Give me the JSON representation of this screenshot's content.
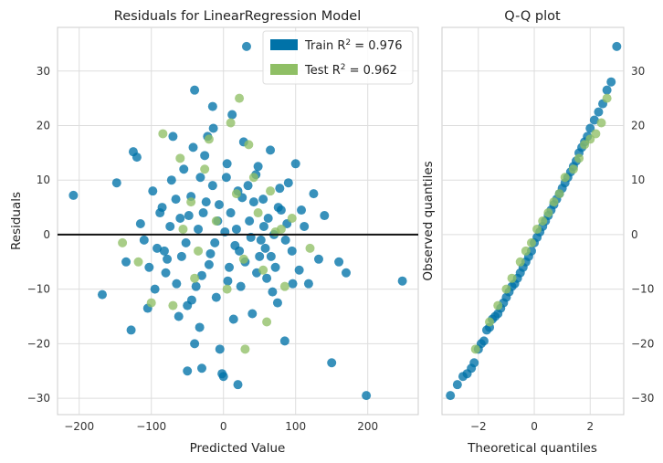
{
  "chart_data": [
    {
      "type": "scatter",
      "title": "Residuals for LinearRegression Model",
      "xlabel": "Predicted Value",
      "ylabel": "Residuals",
      "xlim": [
        -230,
        270
      ],
      "ylim": [
        -33,
        38
      ],
      "xticks": [
        -200,
        -100,
        0,
        100,
        200
      ],
      "yticks": [
        -30,
        -20,
        -10,
        0,
        10,
        20,
        30
      ],
      "zero_line": 0,
      "grid": true,
      "legend_position": "top-right",
      "legend": [
        {
          "name_prefix": "Train R",
          "superscript": "2",
          "value_text": " = 0.976",
          "color": "#0072a8"
        },
        {
          "name_prefix": "Test R",
          "superscript": "2",
          "value_text": " = 0.962",
          "color": "#8fbf65"
        }
      ],
      "series": [
        {
          "name": "Train",
          "color": "#0072a8",
          "points": [
            [
              -208,
              7.2
            ],
            [
              -168,
              -11.0
            ],
            [
              -148,
              9.5
            ],
            [
              -128,
              -17.5
            ],
            [
              -125,
              15.2
            ],
            [
              -120,
              14.2
            ],
            [
              -110,
              -1.0
            ],
            [
              -103,
              -6.0
            ],
            [
              -98,
              8.0
            ],
            [
              -92,
              -2.5
            ],
            [
              -85,
              5.0
            ],
            [
              -78,
              -4.5
            ],
            [
              -72,
              10.0
            ],
            [
              -65,
              -9.0
            ],
            [
              -60,
              3.0
            ],
            [
              -55,
              12.0
            ],
            [
              -50,
              -13.0
            ],
            [
              -45,
              7.0
            ],
            [
              -40,
              -20.0
            ],
            [
              -35,
              1.0
            ],
            [
              -30,
              -7.5
            ],
            [
              -26,
              14.5
            ],
            [
              -22,
              18.0
            ],
            [
              -18,
              -3.5
            ],
            [
              -15,
              9.0
            ],
            [
              -10,
              -11.5
            ],
            [
              -6,
              5.5
            ],
            [
              -2,
              -25.5
            ],
            [
              2,
              0.5
            ],
            [
              5,
              13.0
            ],
            [
              8,
              -6.0
            ],
            [
              12,
              22.0
            ],
            [
              16,
              -2.0
            ],
            [
              20,
              8.0
            ],
            [
              24,
              -9.5
            ],
            [
              28,
              17.0
            ],
            [
              32,
              34.5
            ],
            [
              36,
              2.5
            ],
            [
              40,
              -14.5
            ],
            [
              45,
              11.0
            ],
            [
              50,
              -4.0
            ],
            [
              55,
              6.5
            ],
            [
              60,
              -8.0
            ],
            [
              65,
              15.5
            ],
            [
              70,
              0.0
            ],
            [
              75,
              -12.5
            ],
            [
              80,
              4.5
            ],
            [
              85,
              -19.5
            ],
            [
              90,
              9.5
            ],
            [
              95,
              -3.0
            ],
            [
              100,
              13.0
            ],
            [
              105,
              -6.5
            ],
            [
              112,
              1.5
            ],
            [
              118,
              -9.0
            ],
            [
              125,
              7.5
            ],
            [
              132,
              -4.5
            ],
            [
              140,
              3.5
            ],
            [
              150,
              -23.5
            ],
            [
              160,
              -5.0
            ],
            [
              170,
              -7.0
            ],
            [
              198,
              -29.5
            ],
            [
              248,
              -8.5
            ],
            [
              -70,
              18.0
            ],
            [
              -62,
              -15.0
            ],
            [
              -52,
              -1.5
            ],
            [
              -42,
              16.0
            ],
            [
              -33,
              -17.0
            ],
            [
              -24,
              6.0
            ],
            [
              -14,
              19.5
            ],
            [
              -5,
              -21.0
            ],
            [
              4,
              10.5
            ],
            [
              14,
              -15.5
            ],
            [
              26,
              6.8
            ],
            [
              38,
              -0.5
            ],
            [
              48,
              12.5
            ],
            [
              58,
              -2.5
            ],
            [
              68,
              -10.5
            ],
            [
              78,
              8.5
            ],
            [
              88,
              2.0
            ],
            [
              -95,
              -10.0
            ],
            [
              -88,
              4.0
            ],
            [
              -80,
              -7.0
            ],
            [
              -74,
              1.5
            ],
            [
              -58,
              -4.0
            ],
            [
              -48,
              3.5
            ],
            [
              -38,
              -9.5
            ],
            [
              -28,
              4.0
            ],
            [
              -20,
              -5.5
            ],
            [
              -8,
              2.5
            ],
            [
              6,
              -8.5
            ],
            [
              18,
              1.0
            ],
            [
              30,
              -5.0
            ],
            [
              42,
              6.0
            ],
            [
              52,
              -1.0
            ],
            [
              62,
              3.0
            ],
            [
              72,
              -6.0
            ],
            [
              -115,
              2.0
            ],
            [
              -135,
              -5.0
            ],
            [
              -105,
              -13.5
            ],
            [
              -82,
              -3.0
            ],
            [
              -66,
              6.5
            ],
            [
              -44,
              -12.0
            ],
            [
              -32,
              10.5
            ],
            [
              -12,
              -1.5
            ],
            [
              10,
              4.0
            ],
            [
              22,
              -3.0
            ],
            [
              34,
              9.0
            ],
            [
              46,
              -7.0
            ],
            [
              56,
              1.5
            ],
            [
              66,
              -4.0
            ],
            [
              76,
              5.0
            ],
            [
              86,
              -1.0
            ],
            [
              96,
              -9.0
            ],
            [
              108,
              4.5
            ],
            [
              -40,
              26.5
            ],
            [
              -15,
              23.5
            ],
            [
              -50,
              -25.0
            ],
            [
              -30,
              -24.5
            ],
            [
              0,
              -26.0
            ],
            [
              20,
              -27.5
            ]
          ]
        },
        {
          "name": "Test",
          "color": "#8fbf65",
          "points": [
            [
              -140,
              -1.5
            ],
            [
              -118,
              -5.0
            ],
            [
              -84,
              18.5
            ],
            [
              -70,
              -13.0
            ],
            [
              -56,
              1.0
            ],
            [
              -40,
              -8.0
            ],
            [
              -26,
              12.0
            ],
            [
              -10,
              2.5
            ],
            [
              5,
              -10.0
            ],
            [
              18,
              7.5
            ],
            [
              22,
              25.0
            ],
            [
              28,
              -4.5
            ],
            [
              35,
              16.5
            ],
            [
              48,
              4.0
            ],
            [
              60,
              -16.0
            ],
            [
              72,
              0.5
            ],
            [
              85,
              -9.5
            ],
            [
              95,
              3.0
            ],
            [
              120,
              -2.5
            ],
            [
              -100,
              -12.5
            ],
            [
              -45,
              6.0
            ],
            [
              -20,
              17.5
            ],
            [
              10,
              20.5
            ],
            [
              30,
              -21.0
            ],
            [
              42,
              10.5
            ],
            [
              55,
              -6.5
            ],
            [
              65,
              8.0
            ],
            [
              80,
              1.0
            ],
            [
              -60,
              14.0
            ],
            [
              -35,
              -3.0
            ]
          ]
        }
      ]
    },
    {
      "type": "scatter",
      "title": "Q-Q plot",
      "xlabel": "Theoretical quantiles",
      "ylabel": "Observed quantiles",
      "xlim": [
        -3.3,
        3.2
      ],
      "ylim": [
        -33,
        38
      ],
      "xticks": [
        -2,
        0,
        2
      ],
      "yticks": [
        -30,
        -20,
        -10,
        0,
        10,
        20,
        30
      ],
      "grid": true,
      "series": [
        {
          "name": "Train",
          "color": "#0072a8",
          "points": [
            [
              -3.0,
              -29.5
            ],
            [
              -2.75,
              -27.5
            ],
            [
              -2.55,
              -26.0
            ],
            [
              -2.4,
              -25.5
            ],
            [
              -2.25,
              -24.5
            ],
            [
              -2.15,
              -23.5
            ],
            [
              -2.0,
              -21.0
            ],
            [
              -1.9,
              -20.0
            ],
            [
              -1.8,
              -19.5
            ],
            [
              -1.7,
              -17.5
            ],
            [
              -1.6,
              -17.0
            ],
            [
              -1.5,
              -15.5
            ],
            [
              -1.4,
              -15.0
            ],
            [
              -1.3,
              -14.5
            ],
            [
              -1.2,
              -13.5
            ],
            [
              -1.1,
              -12.5
            ],
            [
              -1.0,
              -11.5
            ],
            [
              -0.9,
              -10.5
            ],
            [
              -0.8,
              -9.5
            ],
            [
              -0.7,
              -9.0
            ],
            [
              -0.6,
              -8.0
            ],
            [
              -0.5,
              -7.0
            ],
            [
              -0.4,
              -6.0
            ],
            [
              -0.3,
              -5.0
            ],
            [
              -0.2,
              -4.0
            ],
            [
              -0.1,
              -3.0
            ],
            [
              0.0,
              -1.5
            ],
            [
              0.1,
              -0.5
            ],
            [
              0.2,
              0.5
            ],
            [
              0.3,
              1.5
            ],
            [
              0.4,
              2.5
            ],
            [
              0.5,
              3.5
            ],
            [
              0.6,
              4.5
            ],
            [
              0.7,
              5.5
            ],
            [
              0.8,
              6.5
            ],
            [
              0.9,
              7.5
            ],
            [
              1.0,
              8.5
            ],
            [
              1.1,
              9.5
            ],
            [
              1.2,
              10.5
            ],
            [
              1.3,
              11.5
            ],
            [
              1.4,
              12.5
            ],
            [
              1.5,
              13.5
            ],
            [
              1.6,
              15.0
            ],
            [
              1.7,
              16.0
            ],
            [
              1.8,
              17.0
            ],
            [
              1.9,
              18.0
            ],
            [
              2.0,
              19.5
            ],
            [
              2.15,
              21.0
            ],
            [
              2.3,
              22.5
            ],
            [
              2.45,
              24.0
            ],
            [
              2.6,
              26.5
            ],
            [
              2.75,
              28.0
            ],
            [
              2.95,
              34.5
            ]
          ]
        },
        {
          "name": "Test",
          "color": "#8fbf65",
          "points": [
            [
              -2.1,
              -21.0
            ],
            [
              -1.6,
              -16.0
            ],
            [
              -1.3,
              -13.0
            ],
            [
              -1.0,
              -10.0
            ],
            [
              -0.8,
              -8.0
            ],
            [
              -0.5,
              -5.0
            ],
            [
              -0.3,
              -3.0
            ],
            [
              -0.1,
              -1.5
            ],
            [
              0.1,
              1.0
            ],
            [
              0.3,
              2.5
            ],
            [
              0.5,
              4.0
            ],
            [
              0.7,
              6.0
            ],
            [
              0.9,
              7.5
            ],
            [
              1.1,
              10.5
            ],
            [
              1.4,
              12.0
            ],
            [
              1.6,
              14.0
            ],
            [
              1.8,
              16.5
            ],
            [
              2.0,
              17.5
            ],
            [
              2.2,
              18.5
            ],
            [
              2.4,
              20.5
            ],
            [
              2.6,
              25.0
            ]
          ]
        }
      ]
    }
  ]
}
